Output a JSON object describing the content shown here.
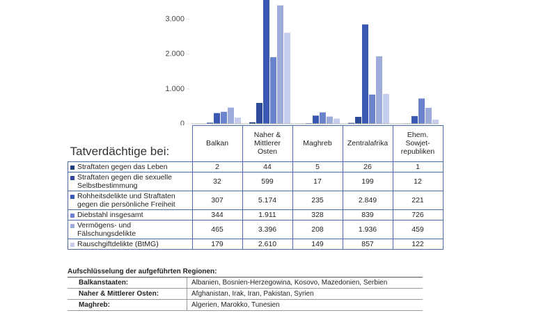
{
  "chart_data": {
    "type": "bar",
    "row_header": "Tatverdächtige bei:",
    "categories": [
      "Balkan",
      "Naher & Mittlerer Osten",
      "Maghreb",
      "Zentralafrika",
      "Ehem. Sowjet-republiken"
    ],
    "series": [
      {
        "name": "Straftaten gegen das Leben",
        "color": "#1f3d7a",
        "values": [
          2,
          44,
          5,
          26,
          1
        ],
        "value_labels": [
          "2",
          "44",
          "5",
          "26",
          "1"
        ]
      },
      {
        "name": "Straftaten gegen die sexuelle Selbstbestimmung",
        "color": "#2c4a98",
        "values": [
          32,
          599,
          17,
          199,
          12
        ],
        "value_labels": [
          "32",
          "599",
          "17",
          "199",
          "12"
        ]
      },
      {
        "name": "Rohheitsdelikte und Straftaten gegen die persönliche Freiheit",
        "color": "#3a58b2",
        "values": [
          307,
          5174,
          235,
          2849,
          221
        ],
        "value_labels": [
          "307",
          "5.174",
          "235",
          "2.849",
          "221"
        ]
      },
      {
        "name": "Diebstahl insgesamt",
        "color": "#6b83cc",
        "values": [
          344,
          1911,
          328,
          839,
          726
        ],
        "value_labels": [
          "344",
          "1.911",
          "328",
          "839",
          "726"
        ]
      },
      {
        "name": "Vermögens- und Fälschungsdelikte",
        "color": "#9eacdc",
        "values": [
          465,
          3396,
          208,
          1936,
          459
        ],
        "value_labels": [
          "465",
          "3.396",
          "208",
          "1.936",
          "459"
        ]
      },
      {
        "name": "Rauschgiftdelikte (BtMG)",
        "color": "#c4cdec",
        "values": [
          179,
          2610,
          149,
          857,
          122
        ],
        "value_labels": [
          "179",
          "2.610",
          "149",
          "857",
          "122"
        ]
      }
    ],
    "ylim": [
      0,
      3550
    ],
    "yticks": [
      0,
      {
        "value": 1000,
        "label": "1.000"
      },
      {
        "value": 2000,
        "label": "2.000"
      },
      {
        "value": 3000,
        "label": "3.000"
      }
    ]
  },
  "regions": {
    "title": "Aufschlüsselung der aufgeführten Regionen:",
    "rows": [
      [
        "Balkanstaaten:",
        "Albanien, Bosnien-Herzegowina, Kosovo, Mazedonien, Serbien"
      ],
      [
        "Naher & Mittlerer Osten:",
        "Afghanistan, Irak, Iran, Pakistan, Syrien"
      ],
      [
        "Maghreb:",
        "Algerien, Marokko, Tunesien"
      ]
    ]
  }
}
